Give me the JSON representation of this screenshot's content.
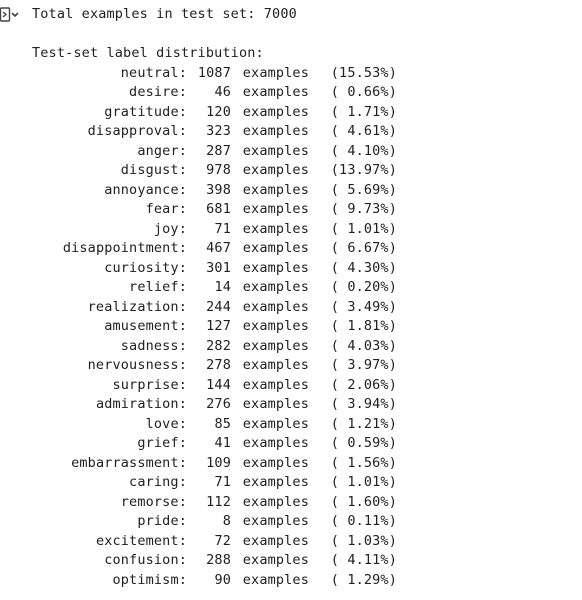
{
  "output_icon": "output-expand-icon",
  "total_line": "Total examples in test set: 7000",
  "dist_header": "Test-set label distribution:",
  "rows": [
    {
      "label": "neutral:",
      "count": "1087",
      "unit": "examples",
      "pct": "(15.53%)"
    },
    {
      "label": "desire:",
      "count": "46",
      "unit": "examples",
      "pct": "( 0.66%)"
    },
    {
      "label": "gratitude:",
      "count": "120",
      "unit": "examples",
      "pct": "( 1.71%)"
    },
    {
      "label": "disapproval:",
      "count": "323",
      "unit": "examples",
      "pct": "( 4.61%)"
    },
    {
      "label": "anger:",
      "count": "287",
      "unit": "examples",
      "pct": "( 4.10%)"
    },
    {
      "label": "disgust:",
      "count": "978",
      "unit": "examples",
      "pct": "(13.97%)"
    },
    {
      "label": "annoyance:",
      "count": "398",
      "unit": "examples",
      "pct": "( 5.69%)"
    },
    {
      "label": "fear:",
      "count": "681",
      "unit": "examples",
      "pct": "( 9.73%)"
    },
    {
      "label": "joy:",
      "count": "71",
      "unit": "examples",
      "pct": "( 1.01%)"
    },
    {
      "label": "disappointment:",
      "count": "467",
      "unit": "examples",
      "pct": "( 6.67%)"
    },
    {
      "label": "curiosity:",
      "count": "301",
      "unit": "examples",
      "pct": "( 4.30%)"
    },
    {
      "label": "relief:",
      "count": "14",
      "unit": "examples",
      "pct": "( 0.20%)"
    },
    {
      "label": "realization:",
      "count": "244",
      "unit": "examples",
      "pct": "( 3.49%)"
    },
    {
      "label": "amusement:",
      "count": "127",
      "unit": "examples",
      "pct": "( 1.81%)"
    },
    {
      "label": "sadness:",
      "count": "282",
      "unit": "examples",
      "pct": "( 4.03%)"
    },
    {
      "label": "nervousness:",
      "count": "278",
      "unit": "examples",
      "pct": "( 3.97%)"
    },
    {
      "label": "surprise:",
      "count": "144",
      "unit": "examples",
      "pct": "( 2.06%)"
    },
    {
      "label": "admiration:",
      "count": "276",
      "unit": "examples",
      "pct": "( 3.94%)"
    },
    {
      "label": "love:",
      "count": "85",
      "unit": "examples",
      "pct": "( 1.21%)"
    },
    {
      "label": "grief:",
      "count": "41",
      "unit": "examples",
      "pct": "( 0.59%)"
    },
    {
      "label": "embarrassment:",
      "count": "109",
      "unit": "examples",
      "pct": "( 1.56%)"
    },
    {
      "label": "caring:",
      "count": "71",
      "unit": "examples",
      "pct": "( 1.01%)"
    },
    {
      "label": "remorse:",
      "count": "112",
      "unit": "examples",
      "pct": "( 1.60%)"
    },
    {
      "label": "pride:",
      "count": "8",
      "unit": "examples",
      "pct": "( 0.11%)"
    },
    {
      "label": "excitement:",
      "count": "72",
      "unit": "examples",
      "pct": "( 1.03%)"
    },
    {
      "label": "confusion:",
      "count": "288",
      "unit": "examples",
      "pct": "( 4.11%)"
    },
    {
      "label": "optimism:",
      "count": "90",
      "unit": "examples",
      "pct": "( 1.29%)"
    }
  ]
}
